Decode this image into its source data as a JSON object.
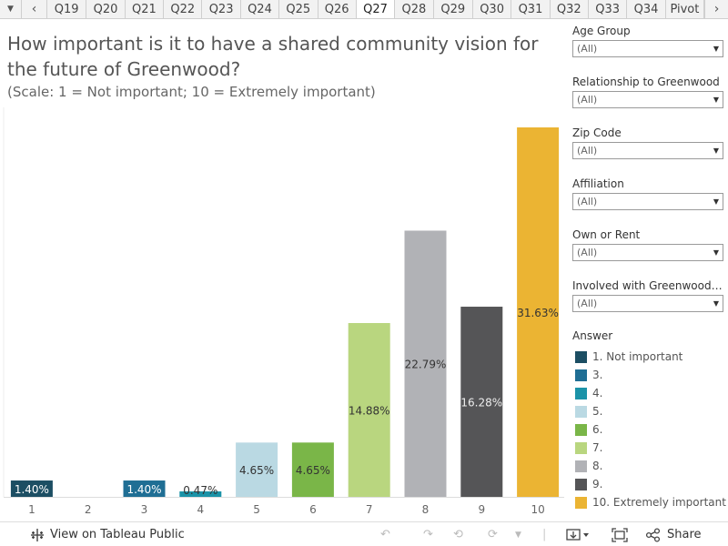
{
  "tabs": {
    "menu_icon": "dropdown-icon",
    "items": [
      "Q19",
      "Q20",
      "Q21",
      "Q22",
      "Q23",
      "Q24",
      "Q25",
      "Q26",
      "Q27",
      "Q28",
      "Q29",
      "Q30",
      "Q31",
      "Q32",
      "Q33",
      "Q34",
      "Pivot"
    ],
    "active": "Q27"
  },
  "header": {
    "title": "How important is it to have a shared community vision for the future of Greenwood?",
    "subtitle": "(Scale: 1 = Not important; 10 = Extremely important)"
  },
  "filters": [
    {
      "label": "Age Group",
      "value": "(All)"
    },
    {
      "label": "Relationship to Greenwood",
      "value": "(All)"
    },
    {
      "label": "Zip Code",
      "value": "(All)"
    },
    {
      "label": "Affiliation",
      "value": "(All)"
    },
    {
      "label": "Own or Rent",
      "value": "(All)"
    },
    {
      "label": "Involved with Greenwood 2...",
      "value": "(All)"
    }
  ],
  "legend": {
    "title": "Answer",
    "items": [
      {
        "label": "1. Not important",
        "color": "#1c4e63"
      },
      {
        "label": "3.",
        "color": "#1f6e94"
      },
      {
        "label": "4.",
        "color": "#1b93a8"
      },
      {
        "label": "5.",
        "color": "#bad9e3"
      },
      {
        "label": "6.",
        "color": "#7ab648"
      },
      {
        "label": "7.",
        "color": "#b9d67f"
      },
      {
        "label": "8.",
        "color": "#b1b2b6"
      },
      {
        "label": "9.",
        "color": "#555557"
      },
      {
        "label": "10. Extremely important",
        "color": "#ebb433"
      }
    ]
  },
  "chart_data": {
    "type": "bar",
    "title": "How important is it to have a shared community vision for the future of Greenwood?",
    "subtitle": "(Scale: 1 = Not important; 10 = Extremely important)",
    "categories": [
      "1",
      "2",
      "3",
      "4",
      "5",
      "6",
      "7",
      "8",
      "9",
      "10"
    ],
    "values": [
      1.4,
      0,
      1.4,
      0.47,
      4.65,
      4.65,
      14.88,
      22.79,
      16.28,
      31.63
    ],
    "labels": [
      "1.40%",
      "",
      "1.40%",
      "0.47%",
      "4.65%",
      "4.65%",
      "14.88%",
      "22.79%",
      "16.28%",
      "31.63%"
    ],
    "colors": [
      "#1c4e63",
      "",
      "#1f6e94",
      "#1b93a8",
      "#bad9e3",
      "#7ab648",
      "#b9d67f",
      "#b1b2b6",
      "#555557",
      "#ebb433"
    ],
    "label_colors": [
      "#ffffff",
      "",
      "#ffffff",
      "#333333",
      "#333333",
      "#333333",
      "#333333",
      "#333333",
      "#eeeeee",
      "#333333"
    ],
    "ylim": [
      0,
      31.63
    ],
    "xlabel": "",
    "ylabel": "",
    "unit": "%"
  },
  "toolbar": {
    "view_label": "View on Tableau Public",
    "share_label": "Share",
    "icons": [
      "tableau-icon",
      "undo-icon",
      "redo-icon",
      "revert-icon",
      "refresh-icon",
      "pause-icon",
      "download-icon",
      "fullscreen-icon",
      "share-icon"
    ]
  }
}
